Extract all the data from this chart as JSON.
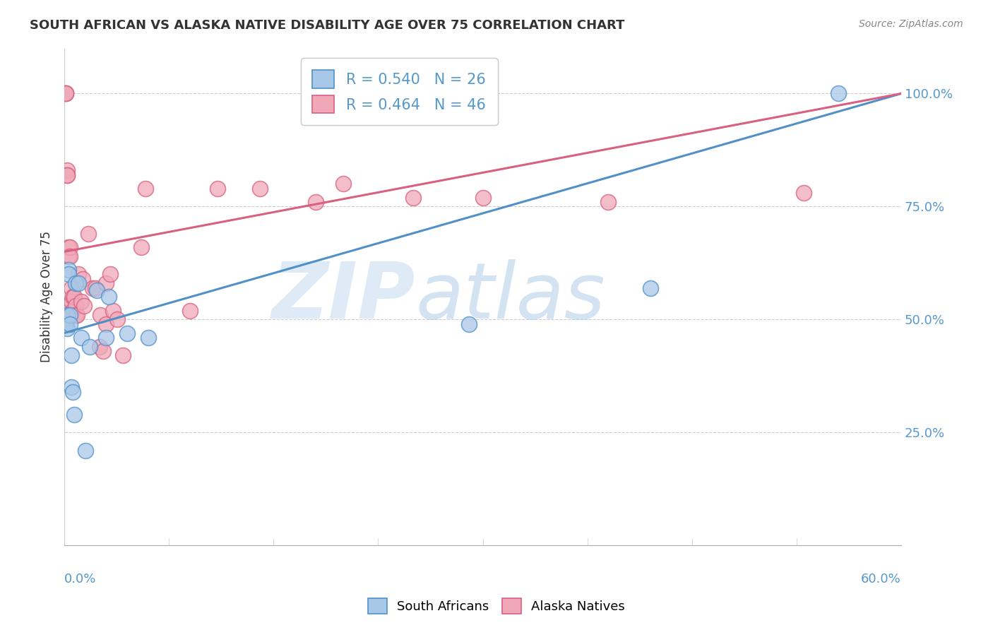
{
  "title": "SOUTH AFRICAN VS ALASKA NATIVE DISABILITY AGE OVER 75 CORRELATION CHART",
  "source": "Source: ZipAtlas.com",
  "ylabel": "Disability Age Over 75",
  "xlim": [
    0.0,
    0.6
  ],
  "ylim": [
    0.0,
    1.1
  ],
  "yticks": [
    0.25,
    0.5,
    0.75,
    1.0
  ],
  "ytick_labels": [
    "25.0%",
    "50.0%",
    "75.0%",
    "100.0%"
  ],
  "xtick_left": "0.0%",
  "xtick_right": "60.0%",
  "blue_color": "#a8c8e8",
  "pink_color": "#f0a8b8",
  "blue_line_color": "#5090c8",
  "pink_line_color": "#d86080",
  "watermark_zip": "ZIP",
  "watermark_atlas": "atlas",
  "legend_blue_label": "R = 0.540   N = 26",
  "legend_pink_label": "R = 0.464   N = 46",
  "south_african_label": "South Africans",
  "alaska_native_label": "Alaska Natives",
  "blue_points_x": [
    0.001,
    0.001,
    0.001,
    0.002,
    0.002,
    0.003,
    0.003,
    0.004,
    0.004,
    0.005,
    0.005,
    0.006,
    0.007,
    0.008,
    0.01,
    0.012,
    0.015,
    0.018,
    0.023,
    0.03,
    0.032,
    0.045,
    0.06,
    0.29,
    0.42,
    0.555
  ],
  "blue_points_y": [
    0.49,
    0.49,
    0.49,
    0.51,
    0.48,
    0.61,
    0.6,
    0.51,
    0.49,
    0.42,
    0.35,
    0.34,
    0.29,
    0.58,
    0.58,
    0.46,
    0.21,
    0.44,
    0.565,
    0.46,
    0.55,
    0.47,
    0.46,
    0.49,
    0.57,
    1.0
  ],
  "pink_points_x": [
    0.001,
    0.001,
    0.001,
    0.002,
    0.002,
    0.002,
    0.003,
    0.003,
    0.004,
    0.004,
    0.004,
    0.005,
    0.005,
    0.006,
    0.006,
    0.007,
    0.008,
    0.008,
    0.009,
    0.01,
    0.012,
    0.013,
    0.014,
    0.017,
    0.02,
    0.022,
    0.025,
    0.026,
    0.028,
    0.03,
    0.03,
    0.033,
    0.035,
    0.038,
    0.042,
    0.055,
    0.058,
    0.09,
    0.11,
    0.14,
    0.18,
    0.2,
    0.25,
    0.3,
    0.39,
    0.53
  ],
  "pink_points_y": [
    1.0,
    1.0,
    1.0,
    0.83,
    0.82,
    0.82,
    0.66,
    0.64,
    0.66,
    0.64,
    0.53,
    0.57,
    0.54,
    0.55,
    0.52,
    0.55,
    0.53,
    0.51,
    0.51,
    0.6,
    0.54,
    0.59,
    0.53,
    0.69,
    0.57,
    0.57,
    0.44,
    0.51,
    0.43,
    0.49,
    0.58,
    0.6,
    0.52,
    0.5,
    0.42,
    0.66,
    0.79,
    0.52,
    0.79,
    0.79,
    0.76,
    0.8,
    0.77,
    0.77,
    0.76,
    0.78
  ],
  "blue_line_x": [
    0.0,
    0.6
  ],
  "blue_line_y": [
    0.47,
    1.0
  ],
  "pink_line_x": [
    0.0,
    0.6
  ],
  "pink_line_y": [
    0.65,
    1.0
  ]
}
